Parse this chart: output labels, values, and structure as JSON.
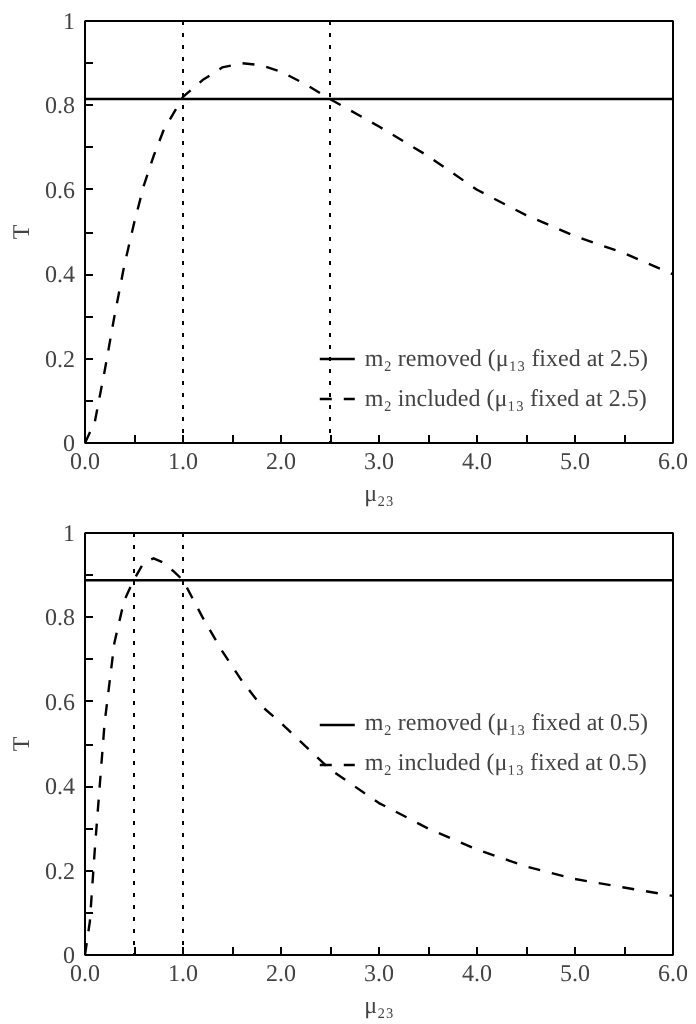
{
  "chart_data": [
    {
      "type": "line",
      "xlabel": "μ₂₃",
      "ylabel": "T",
      "xlim": [
        0,
        6
      ],
      "ylim": [
        0,
        1
      ],
      "xticks": [
        {
          "value": 0,
          "label": "0.0"
        },
        {
          "value": 0.5,
          "label": null
        },
        {
          "value": 1,
          "label": "1.0"
        },
        {
          "value": 1.5,
          "label": null
        },
        {
          "value": 2,
          "label": "2.0"
        },
        {
          "value": 2.5,
          "label": null
        },
        {
          "value": 3,
          "label": "3.0"
        },
        {
          "value": 3.5,
          "label": null
        },
        {
          "value": 4,
          "label": "4.0"
        },
        {
          "value": 4.5,
          "label": null
        },
        {
          "value": 5,
          "label": "5.0"
        },
        {
          "value": 5.5,
          "label": null
        },
        {
          "value": 6,
          "label": "6.0"
        }
      ],
      "yticks": [
        0,
        {
          "value": 0.1,
          "label": null
        },
        0.2,
        {
          "value": 0.3,
          "label": null
        },
        0.4,
        {
          "value": 0.5,
          "label": null
        },
        0.6,
        {
          "value": 0.7,
          "label": null
        },
        0.8,
        {
          "value": 0.9,
          "label": null
        },
        1
      ],
      "legend": "bottom right",
      "grid": false,
      "ref_lines": [
        {
          "axis": "x",
          "value": 1.0,
          "color": "#000000",
          "line_style": "dotted"
        },
        {
          "axis": "x",
          "value": 2.5,
          "color": "#000000",
          "line_style": "dotted"
        }
      ],
      "series": [
        {
          "name": "m₂ removed (μ₁₃ fixed at 2.5)",
          "color": "#000000",
          "line_style": "solid",
          "x": [
            0,
            6
          ],
          "values": [
            0.815,
            0.815
          ]
        },
        {
          "name": "m₂ included (μ₁₃ fixed at 2.5)",
          "color": "#000000",
          "line_style": "dashed",
          "x": [
            0,
            0.1,
            0.2,
            0.3,
            0.4,
            0.5,
            0.6,
            0.7,
            0.8,
            1.0,
            1.2,
            1.4,
            1.6,
            1.8,
            2.0,
            2.25,
            2.5,
            3.0,
            3.5,
            4.0,
            4.5,
            5.0,
            5.5,
            6.0
          ],
          "values": [
            0,
            0.05,
            0.17,
            0.3,
            0.42,
            0.52,
            0.61,
            0.68,
            0.74,
            0.82,
            0.86,
            0.89,
            0.9,
            0.895,
            0.88,
            0.85,
            0.815,
            0.75,
            0.68,
            0.6,
            0.54,
            0.49,
            0.45,
            0.4
          ]
        }
      ]
    },
    {
      "type": "line",
      "xlabel": "μ₂₃",
      "ylabel": "T",
      "xlim": [
        0,
        6
      ],
      "ylim": [
        0,
        1
      ],
      "xticks": [
        {
          "value": 0,
          "label": "0.0"
        },
        {
          "value": 0.5,
          "label": null
        },
        {
          "value": 1,
          "label": "1.0"
        },
        {
          "value": 1.5,
          "label": null
        },
        {
          "value": 2,
          "label": "2.0"
        },
        {
          "value": 2.5,
          "label": null
        },
        {
          "value": 3,
          "label": "3.0"
        },
        {
          "value": 3.5,
          "label": null
        },
        {
          "value": 4,
          "label": "4.0"
        },
        {
          "value": 4.5,
          "label": null
        },
        {
          "value": 5,
          "label": "5.0"
        },
        {
          "value": 5.5,
          "label": null
        },
        {
          "value": 6,
          "label": "6.0"
        }
      ],
      "yticks": [
        0,
        {
          "value": 0.1,
          "label": null
        },
        0.2,
        {
          "value": 0.3,
          "label": null
        },
        0.4,
        {
          "value": 0.5,
          "label": null
        },
        0.6,
        {
          "value": 0.7,
          "label": null
        },
        0.8,
        {
          "value": 0.9,
          "label": null
        },
        1
      ],
      "legend": "right",
      "grid": false,
      "ref_lines": [
        {
          "axis": "x",
          "value": 0.5,
          "color": "#000000",
          "line_style": "dotted"
        },
        {
          "axis": "x",
          "value": 1.0,
          "color": "#000000",
          "line_style": "dotted"
        }
      ],
      "series": [
        {
          "name": "m₂ removed (μ₁₃ fixed at 0.5)",
          "color": "#000000",
          "line_style": "solid",
          "x": [
            0,
            6
          ],
          "values": [
            0.888,
            0.888
          ]
        },
        {
          "name": "m₂ included (μ₁₃ fixed at 0.5)",
          "color": "#000000",
          "line_style": "dashed",
          "x": [
            0,
            0.05,
            0.1,
            0.2,
            0.3,
            0.4,
            0.5,
            0.6,
            0.7,
            0.8,
            0.9,
            1.0,
            1.2,
            1.4,
            1.6,
            1.8,
            2.0,
            2.5,
            3.0,
            3.5,
            4.0,
            4.5,
            5.0,
            5.5,
            6.0
          ],
          "values": [
            0,
            0.08,
            0.25,
            0.55,
            0.74,
            0.84,
            0.89,
            0.93,
            0.94,
            0.93,
            0.91,
            0.888,
            0.8,
            0.72,
            0.65,
            0.59,
            0.55,
            0.44,
            0.36,
            0.3,
            0.25,
            0.21,
            0.18,
            0.16,
            0.14
          ]
        }
      ]
    }
  ]
}
